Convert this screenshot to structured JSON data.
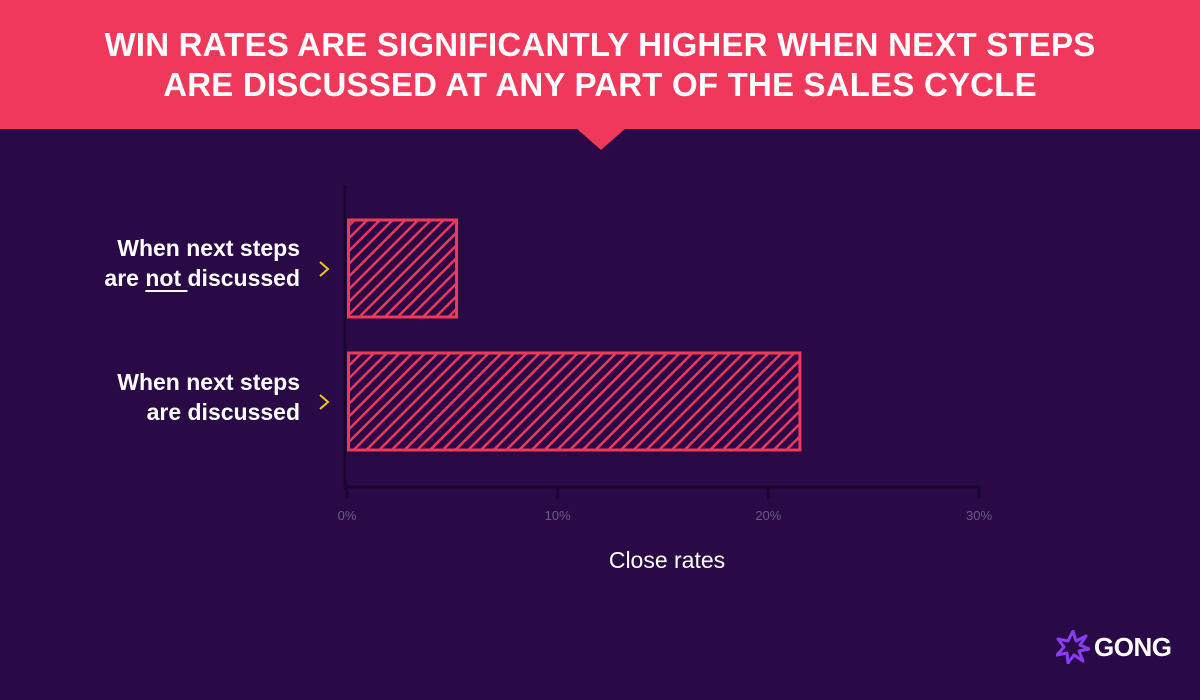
{
  "header": {
    "title_line1": "WIN RATES ARE SIGNIFICANTLY HIGHER WHEN NEXT STEPS",
    "title_line2": "ARE DISCUSSED AT ANY PART OF THE SALES CYCLE"
  },
  "labels": {
    "not_discussed": {
      "line1": "When next steps",
      "pre": "are ",
      "emph": "not ",
      "post": "discussed"
    },
    "discussed": {
      "line1": "When next steps",
      "line2": "are discussed"
    }
  },
  "chart_data": {
    "type": "bar",
    "orientation": "horizontal",
    "categories": [
      "When next steps are not discussed",
      "When next steps are discussed"
    ],
    "values": [
      5.2,
      21.5
    ],
    "xlabel": "Close rates",
    "xlim": [
      0,
      30
    ],
    "ticks": [
      0,
      10,
      20,
      30
    ],
    "tick_labels": [
      "0%",
      "10%",
      "20%",
      "30%"
    ],
    "grid": false,
    "colors": {
      "bar": "#f0385a",
      "background": "#290a46",
      "axis": "#1a0530",
      "tick_label": "#6c5a86"
    }
  },
  "brand": {
    "name": "GONG",
    "logo_icon": "gong-burst-icon",
    "accent": "#8a3cf5"
  }
}
